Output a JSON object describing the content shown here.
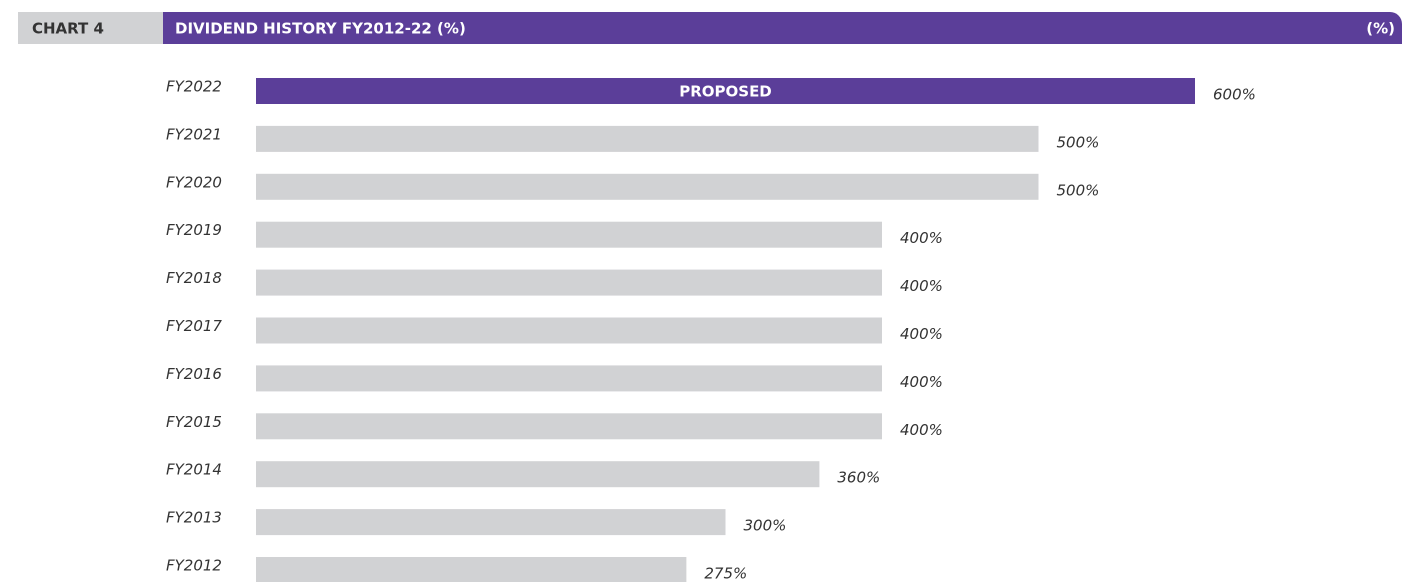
{
  "chart_data": {
    "type": "bar",
    "orientation": "horizontal",
    "label": "CHART 4",
    "title": "DIVIDEND HISTORY FY2012-22 (%)",
    "unit": "(%)",
    "annotation": "PROPOSED",
    "categories": [
      "FY2022",
      "FY2021",
      "FY2020",
      "FY2019",
      "FY2018",
      "FY2017",
      "FY2016",
      "FY2015",
      "FY2014",
      "FY2013",
      "FY2012"
    ],
    "values": [
      600,
      500,
      500,
      400,
      400,
      400,
      400,
      400,
      360,
      300,
      275
    ],
    "value_labels": [
      "600%",
      "500%",
      "500%",
      "400%",
      "400%",
      "400%",
      "400%",
      "400%",
      "360%",
      "300%",
      "275%"
    ],
    "colors": [
      "#5b3e99",
      "#d1d2d4",
      "#d1d2d4",
      "#d1d2d4",
      "#d1d2d4",
      "#d1d2d4",
      "#d1d2d4",
      "#d1d2d4",
      "#d1d2d4",
      "#d1d2d4",
      "#d1d2d4"
    ]
  }
}
